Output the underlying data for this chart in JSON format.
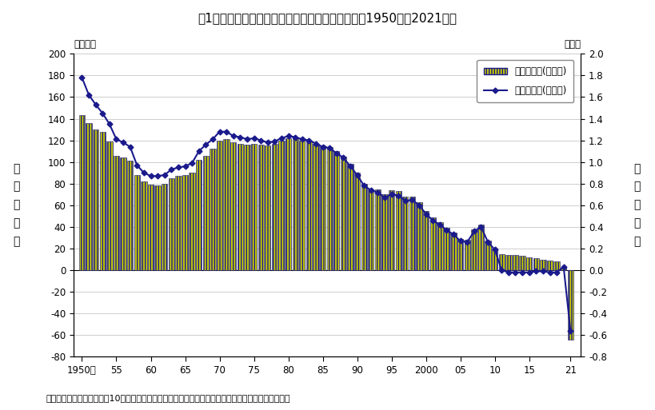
{
  "title": "図1　総人口の人口増減数及び人口増減率の推移（1950年～2021年）",
  "note": "注）　人口増減率は、前年10月から当年９月までの人口増減数を前年人口（期首人口）で除したもの",
  "ylabel_left": "（万人）",
  "ylabel_right": "（％）",
  "left_axis_label": "人\n口\n増\n減\n数",
  "right_axis_label": "人\n口\n増\n減\n率",
  "ylim_left": [
    -80,
    200
  ],
  "ylim_right": [
    -0.8,
    2.0
  ],
  "yticks_left": [
    -80,
    -60,
    -40,
    -20,
    0,
    20,
    40,
    60,
    80,
    100,
    120,
    140,
    160,
    180,
    200
  ],
  "yticks_right": [
    -0.8,
    -0.6,
    -0.4,
    -0.2,
    0.0,
    0.2,
    0.4,
    0.6,
    0.8,
    1.0,
    1.2,
    1.4,
    1.6,
    1.8,
    2.0
  ],
  "xtick_labels": [
    "1950年",
    "55",
    "60",
    "65",
    "70",
    "75",
    "80",
    "85",
    "90",
    "95",
    "2000",
    "05",
    "10",
    "15",
    "21"
  ],
  "xtick_positions": [
    1950,
    1955,
    1960,
    1965,
    1970,
    1975,
    1980,
    1985,
    1990,
    1995,
    2000,
    2005,
    2010,
    2015,
    2021
  ],
  "years": [
    1950,
    1951,
    1952,
    1953,
    1954,
    1955,
    1956,
    1957,
    1958,
    1959,
    1960,
    1961,
    1962,
    1963,
    1964,
    1965,
    1966,
    1967,
    1968,
    1969,
    1970,
    1971,
    1972,
    1973,
    1974,
    1975,
    1976,
    1977,
    1978,
    1979,
    1980,
    1981,
    1982,
    1983,
    1984,
    1985,
    1986,
    1987,
    1988,
    1989,
    1990,
    1991,
    1992,
    1993,
    1994,
    1995,
    1996,
    1997,
    1998,
    1999,
    2000,
    2001,
    2002,
    2003,
    2004,
    2005,
    2006,
    2007,
    2008,
    2009,
    2010,
    2011,
    2012,
    2013,
    2014,
    2015,
    2016,
    2017,
    2018,
    2019,
    2020,
    2021
  ],
  "bar_values": [
    143,
    136,
    130,
    128,
    119,
    106,
    104,
    101,
    88,
    82,
    79,
    78,
    80,
    85,
    87,
    88,
    90,
    102,
    106,
    112,
    120,
    121,
    118,
    117,
    116,
    117,
    116,
    115,
    117,
    120,
    122,
    122,
    120,
    120,
    117,
    115,
    114,
    110,
    105,
    98,
    90,
    80,
    75,
    75,
    70,
    74,
    73,
    68,
    68,
    63,
    55,
    49,
    44,
    39,
    35,
    29,
    28,
    38,
    42,
    27,
    20,
    15,
    14,
    14,
    13,
    12,
    11,
    10,
    9,
    8,
    2,
    -64
  ],
  "line_values": [
    1.78,
    1.62,
    1.53,
    1.45,
    1.35,
    1.21,
    1.18,
    1.14,
    0.97,
    0.9,
    0.87,
    0.87,
    0.88,
    0.93,
    0.95,
    0.96,
    0.99,
    1.1,
    1.16,
    1.21,
    1.28,
    1.28,
    1.24,
    1.23,
    1.21,
    1.22,
    1.2,
    1.18,
    1.19,
    1.22,
    1.24,
    1.23,
    1.21,
    1.2,
    1.17,
    1.14,
    1.13,
    1.08,
    1.04,
    0.96,
    0.88,
    0.78,
    0.74,
    0.72,
    0.67,
    0.7,
    0.69,
    0.64,
    0.65,
    0.6,
    0.52,
    0.46,
    0.42,
    0.37,
    0.33,
    0.27,
    0.26,
    0.36,
    0.4,
    0.26,
    0.19,
    0.0,
    -0.02,
    -0.02,
    -0.02,
    -0.02,
    -0.01,
    -0.01,
    -0.02,
    -0.02,
    0.03,
    -0.56
  ],
  "bar_color_face": "#c8cc00",
  "bar_color_edge": "#1a1a8c",
  "line_color": "#1a1a8c",
  "marker_color": "#1a1a8c",
  "legend_bar_label": "人口増減数(左目盛)",
  "legend_line_label": "人口増減率(右目盛)",
  "bg_color": "#ffffff",
  "grid_color": "#bbbbbb",
  "title_color": "#000000",
  "font_size_title": 11,
  "font_size_ticks": 8.5,
  "font_size_legend": 8.5,
  "font_size_axis_label": 8.5
}
